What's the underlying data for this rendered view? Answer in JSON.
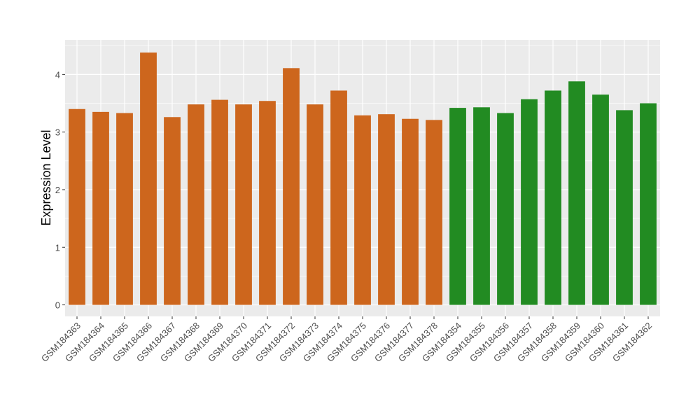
{
  "chart_data": {
    "type": "bar",
    "title": "",
    "xlabel": "",
    "ylabel": "Expression Level",
    "ylim": [
      -0.2,
      4.6
    ],
    "yticks": [
      0,
      1,
      2,
      3,
      4
    ],
    "grid": true,
    "legend": "none",
    "colors": {
      "group1": "#CD661D",
      "group2": "#228B22",
      "panel": "#EBEBEB",
      "grid": "#FFFFFF"
    },
    "categories": [
      "GSM184363",
      "GSM184364",
      "GSM184365",
      "GSM184366",
      "GSM184367",
      "GSM184368",
      "GSM184369",
      "GSM184370",
      "GSM184371",
      "GSM184372",
      "GSM184373",
      "GSM184374",
      "GSM184375",
      "GSM184376",
      "GSM184377",
      "GSM184378",
      "GSM184354",
      "GSM184355",
      "GSM184356",
      "GSM184357",
      "GSM184358",
      "GSM184359",
      "GSM184360",
      "GSM184361",
      "GSM184362"
    ],
    "values": [
      3.4,
      3.35,
      3.33,
      4.38,
      3.26,
      3.48,
      3.56,
      3.48,
      3.54,
      4.11,
      3.48,
      3.72,
      3.29,
      3.31,
      3.23,
      3.21,
      3.42,
      3.43,
      3.33,
      3.57,
      3.72,
      3.88,
      3.65,
      3.38,
      3.5
    ],
    "groups": [
      1,
      1,
      1,
      1,
      1,
      1,
      1,
      1,
      1,
      1,
      1,
      1,
      1,
      1,
      1,
      1,
      2,
      2,
      2,
      2,
      2,
      2,
      2,
      2,
      2
    ]
  }
}
